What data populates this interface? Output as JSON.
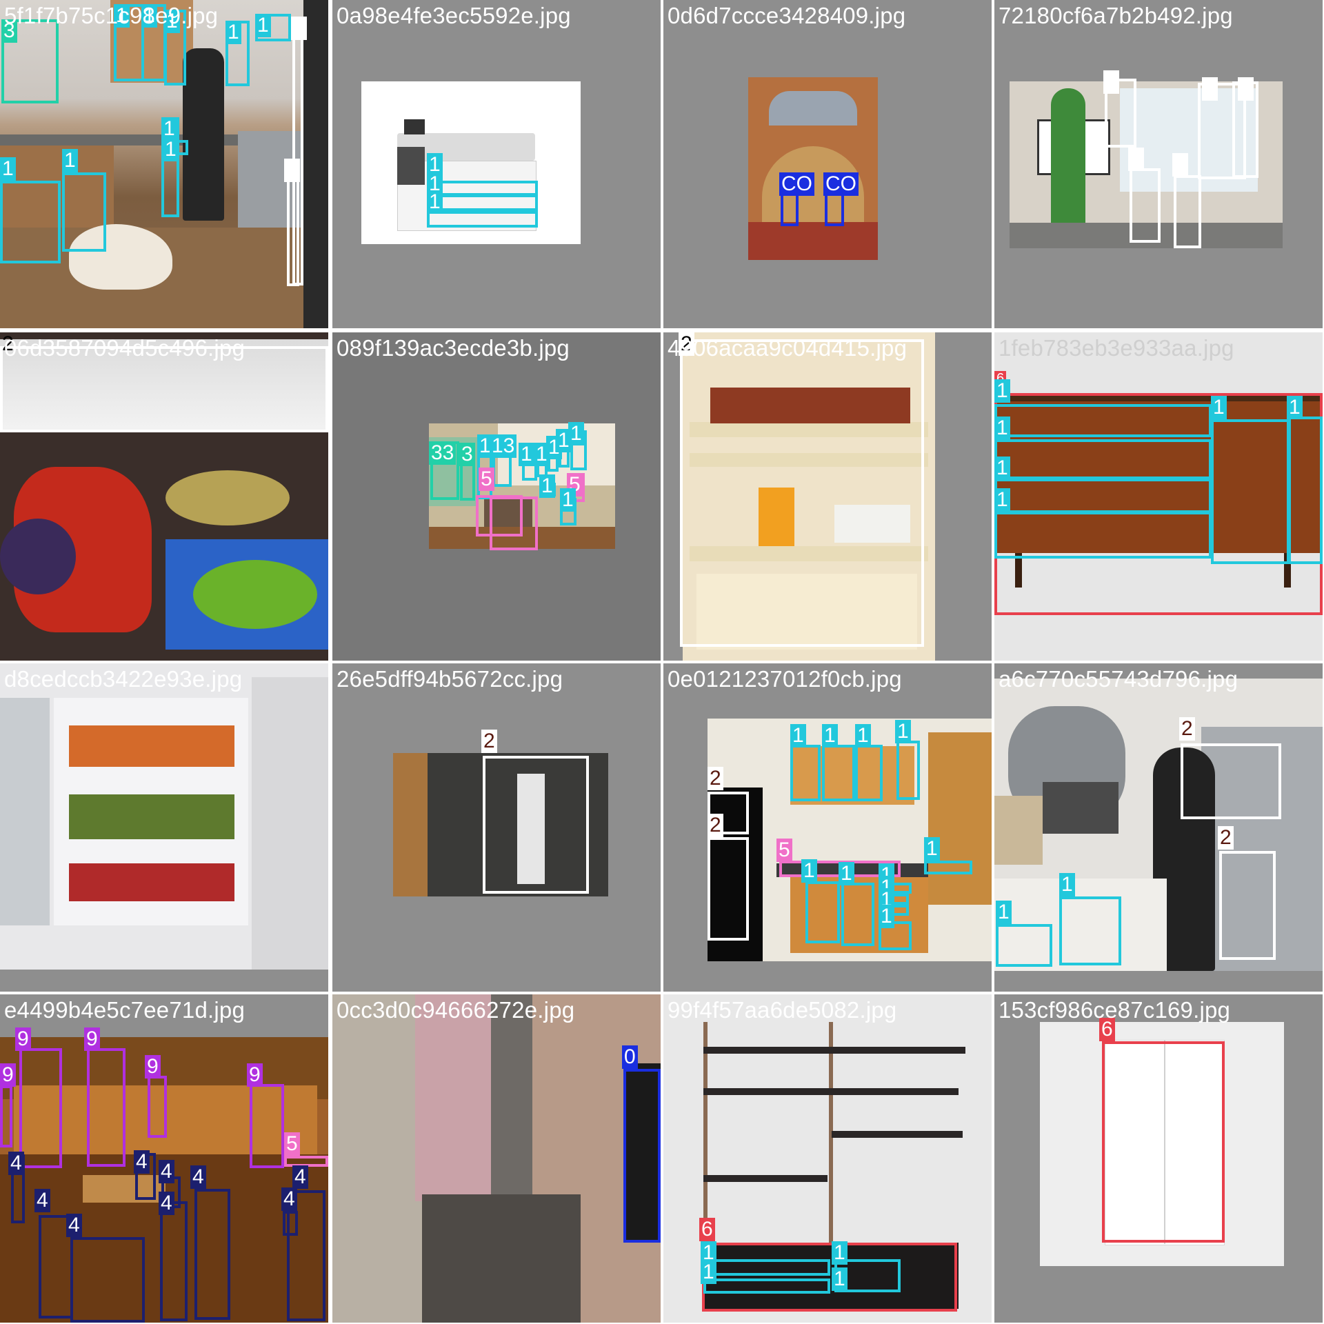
{
  "colors": {
    "cls0": "#1a2ee0",
    "cls1": "#22c8dc",
    "cls2": "#ffffff",
    "cls3": "#22d0a8",
    "cls4": "#1c1f6e",
    "cls5": "#f070c8",
    "cls6": "#e8404c",
    "cls9": "#b030e0",
    "clsCO": "#1a2ee0"
  },
  "class_labels": {
    "c0": "0",
    "c1": "1",
    "c2": "2",
    "c3": "3",
    "c4": "4",
    "c5": "5",
    "c6": "6",
    "c9": "9",
    "cCO": "CO",
    "c33": "33",
    "c13": "13"
  },
  "tiles": [
    {
      "id": "tile-01",
      "filename": "5f1f7b75c1c98e9.jpg",
      "scene": "kitchen with man and dog"
    },
    {
      "id": "tile-02",
      "filename": "0a98e4fe3ec5592e.jpg",
      "scene": "large format printer"
    },
    {
      "id": "tile-03",
      "filename": "0d6d7ccce3428409.jpg",
      "scene": "brick church entrance"
    },
    {
      "id": "tile-04",
      "filename": "72180cf6a7b2b492.jpg",
      "scene": "refrigerator promotion"
    },
    {
      "id": "tile-05",
      "filename": "06d3587094d5c496.jpg",
      "scene": "fruit in freezer drawer"
    },
    {
      "id": "tile-06",
      "filename": "089f139ac3ecde3b.jpg",
      "scene": "bright kitchen interior"
    },
    {
      "id": "tile-07",
      "filename": "4906acaa9c04d415.jpg",
      "scene": "refrigerator door shelves"
    },
    {
      "id": "tile-08",
      "filename": "1feb783eb3e933aa.jpg",
      "scene": "walnut sideboard"
    },
    {
      "id": "tile-09",
      "filename": "d8cedccb3422e93e.jpg",
      "scene": "drink vending machine"
    },
    {
      "id": "tile-10",
      "filename": "26e5dff94b5672cc.jpg",
      "scene": "glass door with notice"
    },
    {
      "id": "tile-11",
      "filename": "0e0121237012f0cb.jpg",
      "scene": "office kitchenette"
    },
    {
      "id": "tile-12",
      "filename": "a6c770c55743d796.jpg",
      "scene": "woman in kitchen"
    },
    {
      "id": "tile-13",
      "filename": "e4499b4e5c7ee71d.jpg",
      "scene": "restaurant dining room"
    },
    {
      "id": "tile-14",
      "filename": "0cc3d0c94666272e.jpg",
      "scene": "narrow alley"
    },
    {
      "id": "tile-15",
      "filename": "99f4f57aa6de5082.jpg",
      "scene": "wall shelving unit"
    },
    {
      "id": "tile-16",
      "filename": "153cf986ce87c169.jpg",
      "scene": "white glass cabinet"
    }
  ]
}
